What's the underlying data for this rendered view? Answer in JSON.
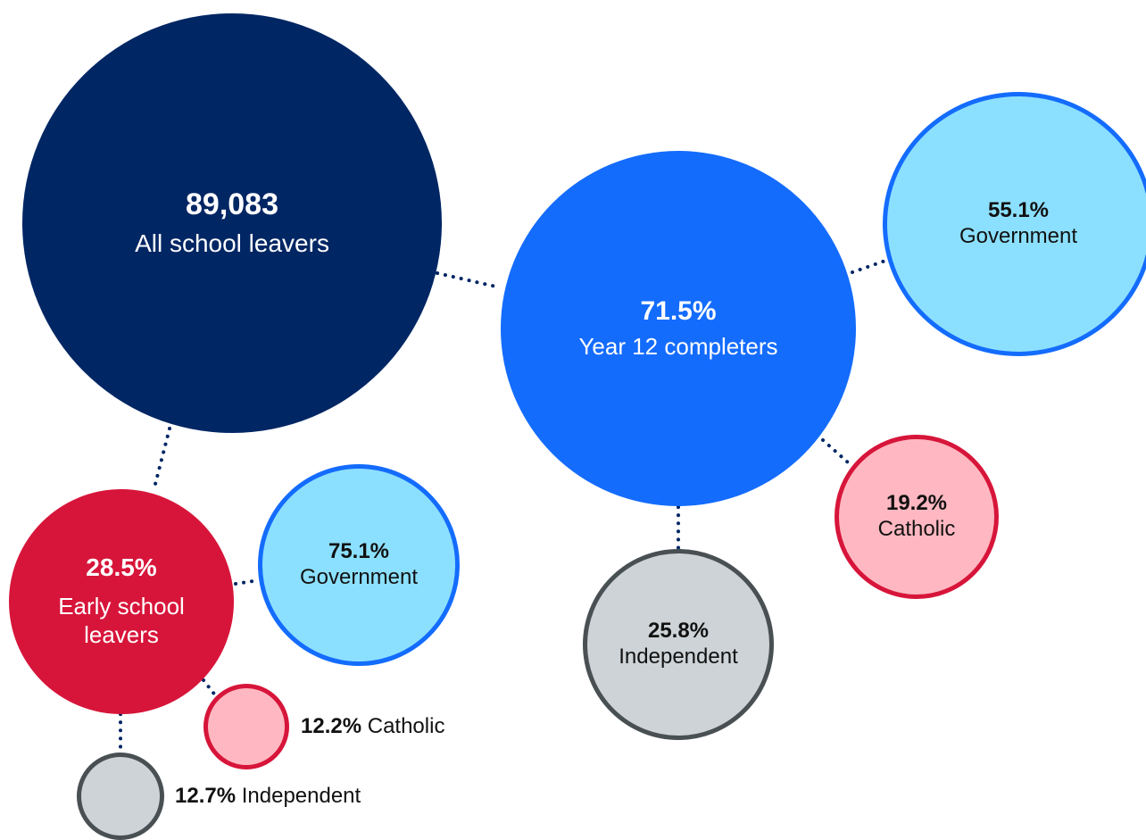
{
  "colors": {
    "navy": "#002664",
    "blue": "#146cfd",
    "red": "#d7153a",
    "light_blue": "#8ce0ff",
    "pink": "#ffb8c1",
    "grey": "#cdd3d6",
    "grey_border": "#495054",
    "dots": "#002664"
  },
  "all_leavers": {
    "value": "89,083",
    "label": "All school leavers"
  },
  "year12": {
    "value": "71.5%",
    "label": "Year 12 completers",
    "government": {
      "value": "55.1%",
      "label": "Government"
    },
    "catholic": {
      "value": "19.2%",
      "label": "Catholic"
    },
    "independent": {
      "value": "25.8%",
      "label": "Independent"
    }
  },
  "early": {
    "value": "28.5%",
    "label_line1": "Early school",
    "label_line2": "leavers",
    "government": {
      "value": "75.1%",
      "label": "Government"
    },
    "catholic": {
      "value": "12.2%",
      "label": "Catholic"
    },
    "independent": {
      "value": "12.7%",
      "label": "Independent"
    }
  }
}
